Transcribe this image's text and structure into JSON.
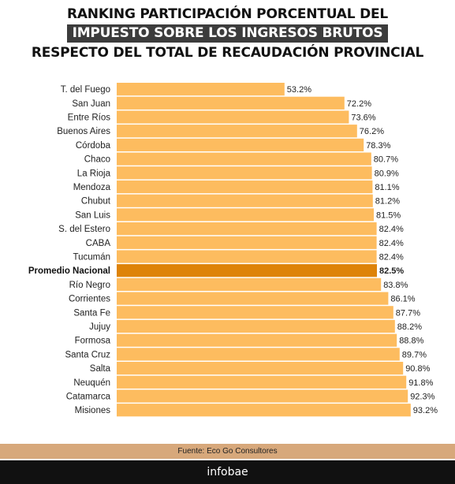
{
  "title": {
    "line1": "RANKING PARTICIPACIÓN PORCENTUAL DEL",
    "line2": "IMPUESTO SOBRE LOS INGRESOS BRUTOS",
    "line3": "RESPECTO DEL TOTAL DE RECAUDACIÓN PROVINCIAL"
  },
  "source": "Fuente: Eco Go Consultores",
  "brand": "infobae",
  "colors": {
    "bar": "#fdbc5f",
    "highlight_bar": "#de8308",
    "highlight_text": "#111111",
    "text": "#222222"
  },
  "chart_data": {
    "type": "bar",
    "orientation": "horizontal",
    "title": "RANKING PARTICIPACIÓN PORCENTUAL DEL IMPUESTO SOBRE LOS INGRESOS BRUTOS RESPECTO DEL TOTAL DE RECAUDACIÓN PROVINCIAL",
    "categories": [
      "T. del Fuego",
      "San Juan",
      "Entre Ríos",
      "Buenos Aires",
      "Córdoba",
      "Chaco",
      "La Rioja",
      "Mendoza",
      "Chubut",
      "San Luis",
      "S. del Estero",
      "CABA",
      "Tucumán",
      "Promedio Nacional",
      "Río Negro",
      "Corrientes",
      "Santa Fe",
      "Jujuy",
      "Formosa",
      "Santa Cruz",
      "Salta",
      "Neuquén",
      "Catamarca",
      "Misiones"
    ],
    "values": [
      53.2,
      72.2,
      73.6,
      76.2,
      78.3,
      80.7,
      80.9,
      81.1,
      81.2,
      81.5,
      82.4,
      82.4,
      82.4,
      82.5,
      83.8,
      86.1,
      87.7,
      88.2,
      88.8,
      89.7,
      90.8,
      91.8,
      92.3,
      93.2
    ],
    "value_labels": [
      "53.2%",
      "72.2%",
      "73.6%",
      "76.2%",
      "78.3%",
      "80.7%",
      "80.9%",
      "81.1%",
      "81.2%",
      "81.5%",
      "82.4%",
      "82.4%",
      "82.4%",
      "82.5%",
      "83.8%",
      "86.1%",
      "87.7%",
      "88.2%",
      "88.8%",
      "89.7%",
      "90.8%",
      "91.8%",
      "92.3%",
      "93.2%"
    ],
    "highlight": "Promedio Nacional",
    "xlim": [
      0,
      100
    ],
    "grid": false,
    "axes_visible": false
  }
}
